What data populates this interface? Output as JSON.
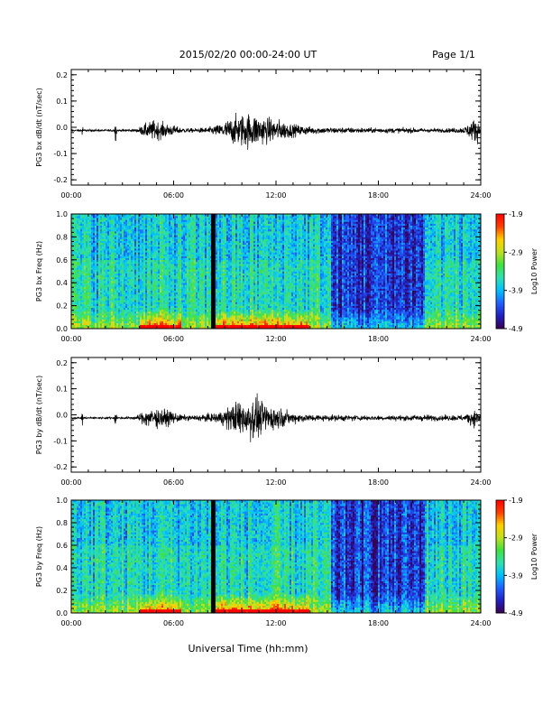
{
  "header": {
    "title": "2015/02/20  00:00-24:00 UT",
    "page": "Page 1/1"
  },
  "footer": {
    "xlabel": "Universal Time (hh:mm)"
  },
  "colors": {
    "trace": "#000000",
    "gap": "#000000",
    "colormap": [
      "#3a0050",
      "#2020c0",
      "#2060ff",
      "#00c0ff",
      "#30e0b0",
      "#40e040",
      "#c0e020",
      "#ffd000",
      "#ff4000",
      "#ff0000"
    ]
  },
  "chart_data": [
    {
      "type": "line",
      "ylabel": "PG3 bx dB/dt (nT/sec)",
      "xticks": [
        "00:00",
        "06:00",
        "12:00",
        "18:00",
        "24:00"
      ],
      "yticks": [
        "-0.2",
        "-0.1",
        "0.0",
        "0.1",
        "0.2"
      ],
      "xlim": [
        0,
        24
      ],
      "ylim": [
        -0.22,
        0.22
      ],
      "series": [
        {
          "x_hours": [
            0,
            0.6,
            0.65,
            0.7,
            2.5,
            2.6,
            2.7,
            3.8,
            4.3,
            4.8,
            5.4,
            6.5,
            7.2,
            8.0,
            8.5,
            9.0,
            9.5,
            10.0,
            10.5,
            11.0,
            11.5,
            12.0,
            12.5,
            13.0,
            13.5,
            14.0,
            15.0,
            16.0,
            17.0,
            18.0,
            19.0,
            20.0,
            21.0,
            22.0,
            23.0,
            23.5,
            23.8,
            24.0
          ],
          "envelope": [
            0.004,
            0.004,
            0.045,
            0.004,
            0.004,
            0.045,
            0.004,
            0.006,
            0.025,
            0.04,
            0.03,
            0.01,
            0.008,
            0.012,
            0.02,
            0.035,
            0.055,
            0.065,
            0.07,
            0.06,
            0.05,
            0.045,
            0.035,
            0.025,
            0.02,
            0.015,
            0.012,
            0.012,
            0.01,
            0.01,
            0.01,
            0.01,
            0.008,
            0.008,
            0.012,
            0.04,
            0.05,
            0.008
          ]
        }
      ]
    },
    {
      "type": "heatmap",
      "ylabel": "PG3 bx Freq (Hz)",
      "xticks": [
        "00:00",
        "06:00",
        "12:00",
        "18:00",
        "24:00"
      ],
      "yticks": [
        "0.0",
        "0.2",
        "0.4",
        "0.6",
        "0.8",
        "1.0"
      ],
      "xlim": [
        0,
        24
      ],
      "ylim": [
        0,
        1.0
      ],
      "colorbar": {
        "label": "Log10 Power",
        "ticks": [
          "-1.9",
          "-2.9",
          "-3.9",
          "-4.9"
        ],
        "range": [
          -4.9,
          -1.9
        ]
      },
      "data_gap_hours": [
        8.2,
        8.45
      ],
      "quiet_interval_hours": [
        15.2,
        20.7
      ],
      "activity_hours": [
        [
          4.0,
          6.5
        ],
        [
          8.5,
          14.0
        ]
      ]
    },
    {
      "type": "line",
      "ylabel": "PG3 by dB/dt (nT/sec)",
      "xticks": [
        "00:00",
        "06:00",
        "12:00",
        "18:00",
        "24:00"
      ],
      "yticks": [
        "-0.2",
        "-0.1",
        "0.0",
        "0.1",
        "0.2"
      ],
      "xlim": [
        0,
        24
      ],
      "ylim": [
        -0.22,
        0.22
      ],
      "series": [
        {
          "x_hours": [
            0,
            0.6,
            0.65,
            0.7,
            2.5,
            2.6,
            2.7,
            3.8,
            4.3,
            4.8,
            5.4,
            6.5,
            7.2,
            8.0,
            8.5,
            9.0,
            9.5,
            10.0,
            10.5,
            11.0,
            11.5,
            12.0,
            12.5,
            13.0,
            13.5,
            14.0,
            15.0,
            16.0,
            17.0,
            18.0,
            19.0,
            20.0,
            21.0,
            22.0,
            23.0,
            23.5,
            23.8,
            24.0
          ],
          "envelope": [
            0.004,
            0.004,
            0.05,
            0.004,
            0.004,
            0.05,
            0.004,
            0.006,
            0.03,
            0.04,
            0.035,
            0.012,
            0.01,
            0.015,
            0.02,
            0.035,
            0.06,
            0.07,
            0.09,
            0.07,
            0.055,
            0.045,
            0.03,
            0.02,
            0.018,
            0.014,
            0.012,
            0.012,
            0.01,
            0.01,
            0.01,
            0.012,
            0.012,
            0.01,
            0.012,
            0.03,
            0.03,
            0.01
          ]
        }
      ]
    },
    {
      "type": "heatmap",
      "ylabel": "PG3 by Freq (Hz)",
      "xticks": [
        "00:00",
        "06:00",
        "12:00",
        "18:00",
        "24:00"
      ],
      "yticks": [
        "0.0",
        "0.2",
        "0.4",
        "0.6",
        "0.8",
        "1.0"
      ],
      "xlim": [
        0,
        24
      ],
      "ylim": [
        0,
        1.0
      ],
      "colorbar": {
        "label": "Log10 Power",
        "ticks": [
          "-1.9",
          "-2.9",
          "-3.9",
          "-4.9"
        ],
        "range": [
          -4.9,
          -1.9
        ]
      },
      "data_gap_hours": [
        8.2,
        8.45
      ],
      "quiet_interval_hours": [
        15.2,
        20.7
      ],
      "activity_hours": [
        [
          4.0,
          6.5
        ],
        [
          8.5,
          14.0
        ]
      ]
    }
  ]
}
